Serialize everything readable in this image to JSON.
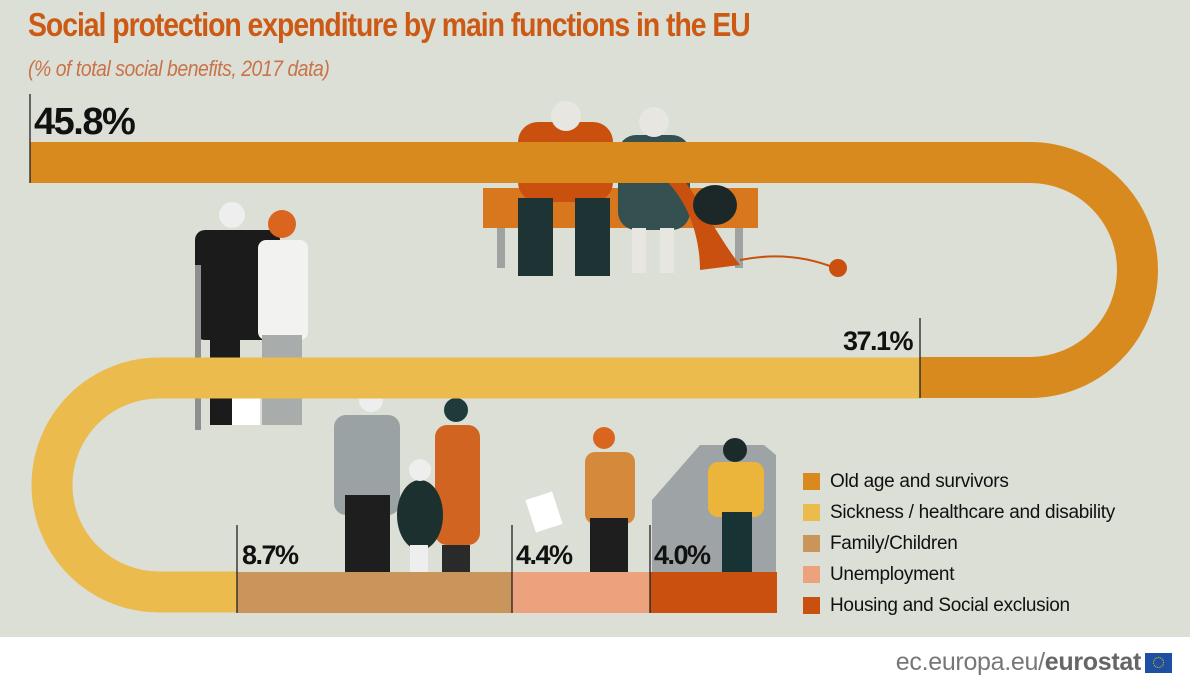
{
  "header": {
    "title": "Social protection expenditure by main functions in the EU",
    "subtitle": "(% of total social benefits, 2017 data)"
  },
  "chart_data": {
    "type": "bar",
    "title": "Social protection expenditure by main functions in the EU",
    "subtitle": "(% of total social benefits, 2017 data)",
    "categories": [
      "Old age and survivors",
      "Sickness / healthcare and disability",
      "Family/Children",
      "Unemployment",
      "Housing and Social exclusion"
    ],
    "values": [
      45.8,
      37.1,
      8.7,
      4.4,
      4.0
    ],
    "labels": [
      "45.8%",
      "37.1%",
      "8.7%",
      "4.4%",
      "4.0%"
    ],
    "colors": [
      "#d98a1f",
      "#ecbb4e",
      "#c9955a",
      "#eca27c",
      "#c9500f"
    ],
    "legend_position": "bottom-right"
  },
  "footer": {
    "domain": "ec.europa.eu/",
    "brand": "eurostat",
    "flag_icon": "eu-flag-icon"
  },
  "colors": {
    "background": "#dcdfd6",
    "title": "#cc5a14"
  }
}
